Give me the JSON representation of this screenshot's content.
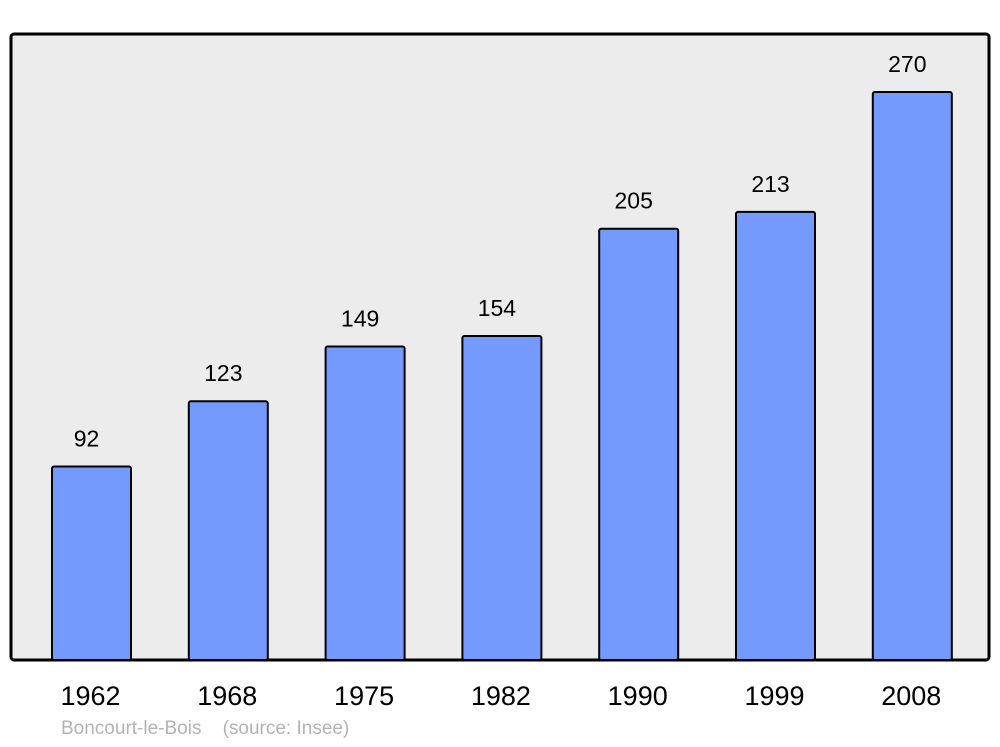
{
  "chart_data": {
    "type": "bar",
    "categories": [
      "1962",
      "1968",
      "1975",
      "1982",
      "1990",
      "1999",
      "2008"
    ],
    "values": [
      92,
      123,
      149,
      154,
      205,
      213,
      270
    ],
    "title": "",
    "xlabel": "",
    "ylabel": "",
    "ylim": [
      0,
      270
    ],
    "grid": false,
    "colors": {
      "bar": "#7499ff",
      "plot_background": "#ececec",
      "frame": "#000000"
    }
  },
  "footer": {
    "place": "Boncourt-le-Bois",
    "source": "(source: Insee)"
  }
}
